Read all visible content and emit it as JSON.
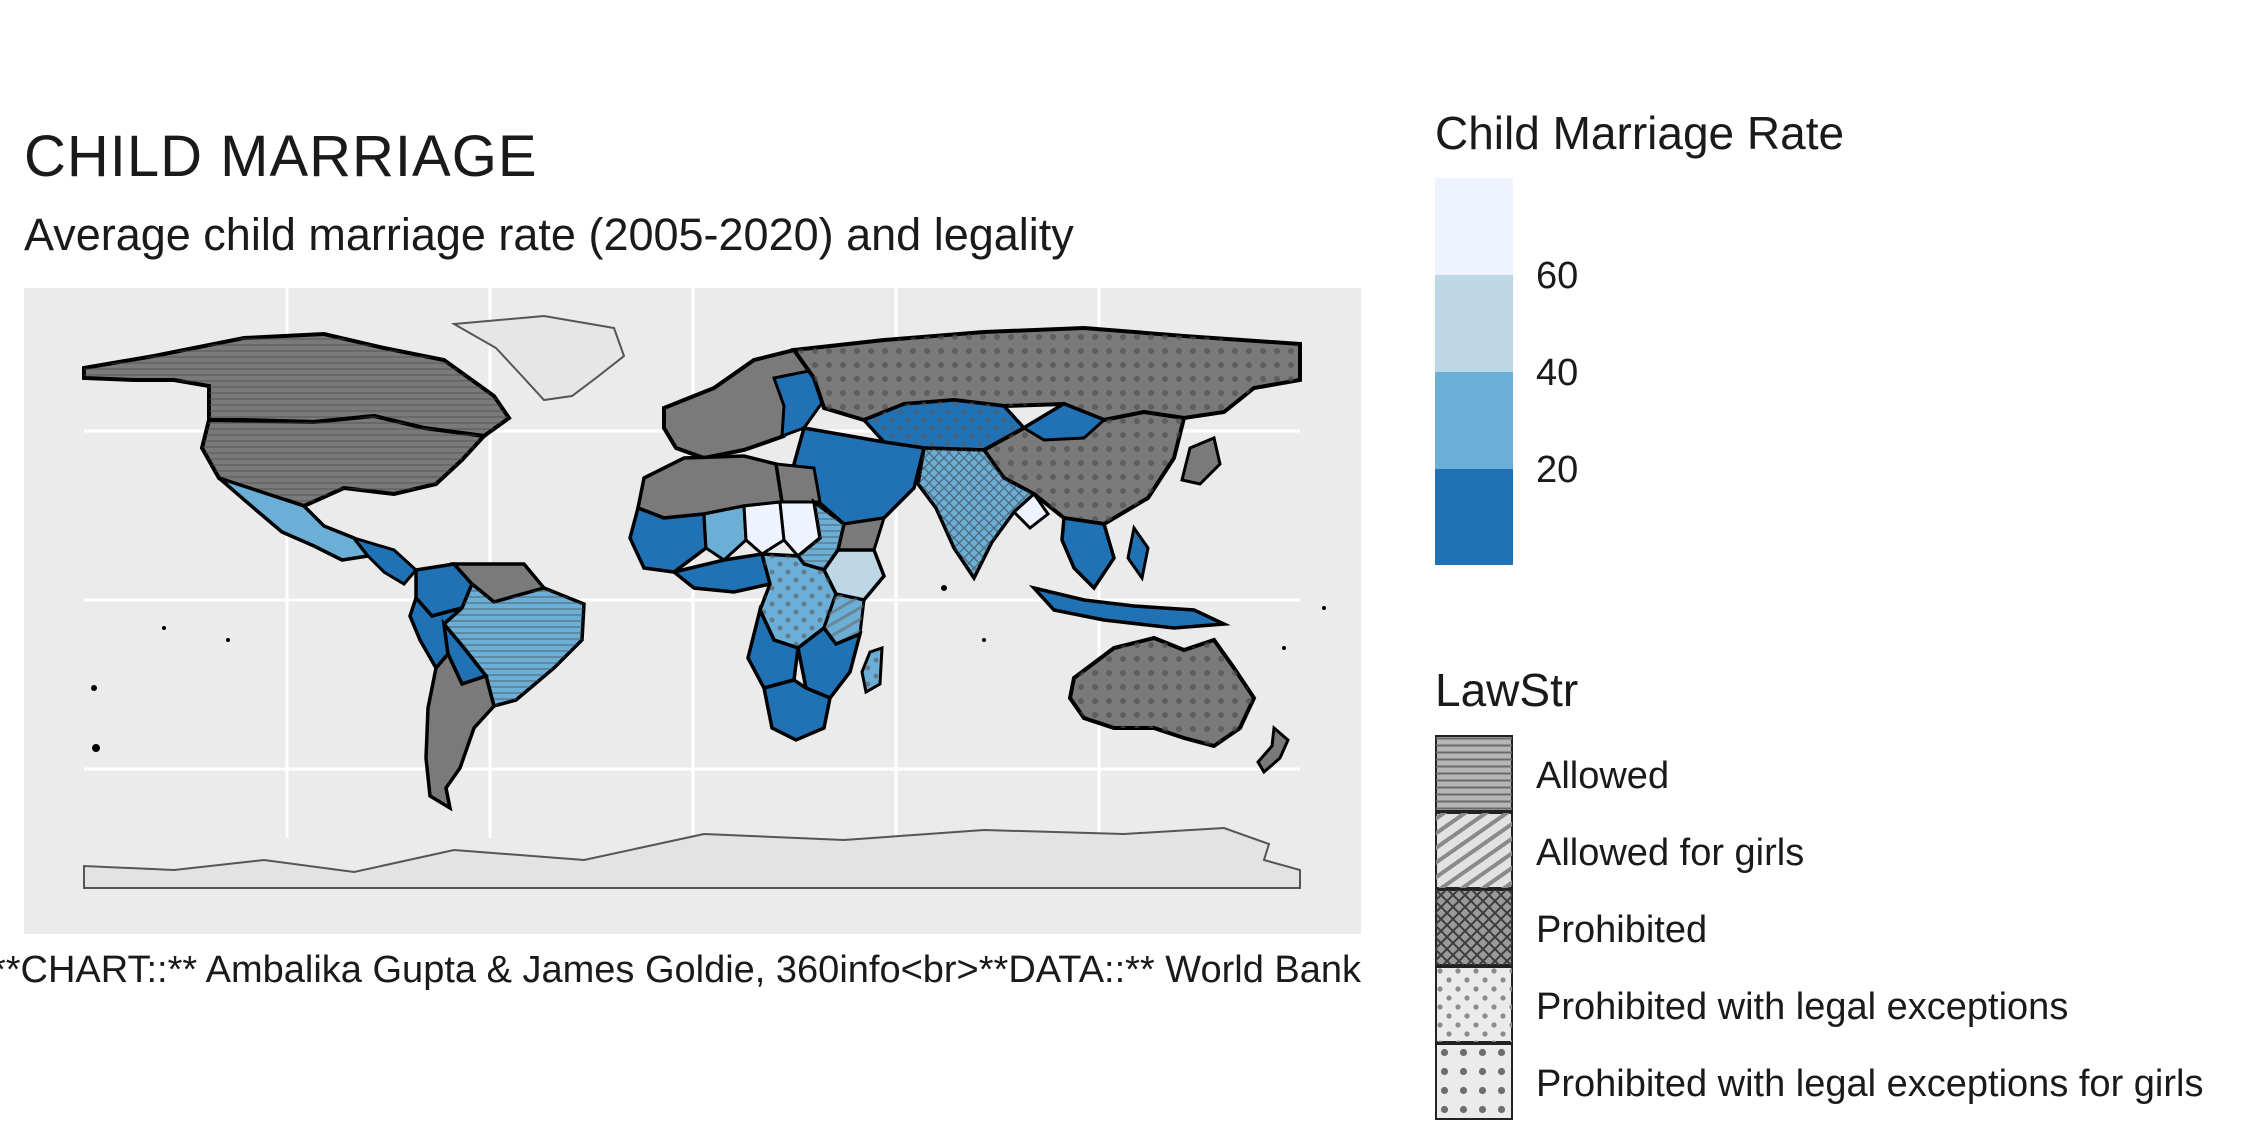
{
  "chart": {
    "title": "CHILD MARRIAGE",
    "subtitle": "Average child marriage rate (2005-2020) and legality",
    "caption": "**CHART::** Ambalika Gupta & James Goldie, 360info<br>**DATA::** World Bank"
  },
  "legend_rate": {
    "title": "Child Marriage Rate",
    "ticks": [
      "20",
      "40",
      "60"
    ],
    "colors": [
      "#2171b5",
      "#6baed6",
      "#bdd7e7",
      "#eff3ff"
    ]
  },
  "legend_law": {
    "title": "LawStr",
    "items": [
      {
        "label": "Allowed",
        "pattern": "horizontal-lines"
      },
      {
        "label": "Allowed for girls",
        "pattern": "diagonal-stripes"
      },
      {
        "label": "Prohibited",
        "pattern": "crosshatch"
      },
      {
        "label": "Prohibited with legal exceptions",
        "pattern": "sparse-dots"
      },
      {
        "label": "Prohibited with legal exceptions for girls",
        "pattern": "dense-dots"
      }
    ]
  },
  "map": {
    "background": "#ebebeb",
    "no_data_fill": "#7a7a7a",
    "countries": [
      {
        "name": "Canada",
        "rate": null,
        "law": "Allowed"
      },
      {
        "name": "United States",
        "rate": null,
        "law": "Allowed"
      },
      {
        "name": "Mexico",
        "rate": 21,
        "law": "Allowed"
      },
      {
        "name": "Brazil",
        "rate": 26,
        "law": "Allowed"
      },
      {
        "name": "Colombia",
        "rate": 23,
        "law": "Prohibited with legal exceptions"
      },
      {
        "name": "Peru",
        "rate": 22,
        "law": "Allowed"
      },
      {
        "name": "Bolivia",
        "rate": 20,
        "law": "Allowed"
      },
      {
        "name": "Argentina",
        "rate": null,
        "law": "Prohibited with legal exceptions"
      },
      {
        "name": "Russia",
        "rate": null,
        "law": "Prohibited with legal exceptions for girls"
      },
      {
        "name": "China",
        "rate": null,
        "law": "Prohibited with legal exceptions for girls"
      },
      {
        "name": "Kazakhstan",
        "rate": 7,
        "law": "Prohibited with legal exceptions"
      },
      {
        "name": "India",
        "rate": 27,
        "law": "Prohibited"
      },
      {
        "name": "Mali",
        "rate": 54,
        "law": "Allowed for girls"
      },
      {
        "name": "Niger",
        "rate": 76,
        "law": "Prohibited with legal exceptions"
      },
      {
        "name": "Chad",
        "rate": 67,
        "law": "Prohibited"
      },
      {
        "name": "Sudan",
        "rate": 34,
        "law": "Allowed"
      },
      {
        "name": "Ethiopia",
        "rate": 40,
        "law": "Prohibited with legal exceptions"
      },
      {
        "name": "DR Congo",
        "rate": 29,
        "law": "Prohibited with legal exceptions"
      },
      {
        "name": "Tanzania",
        "rate": 31,
        "law": "Allowed for girls"
      },
      {
        "name": "Mozambique",
        "rate": 53,
        "law": "Prohibited with legal exceptions"
      },
      {
        "name": "Madagascar",
        "rate": 40,
        "law": "Prohibited with legal exceptions"
      },
      {
        "name": "South Africa",
        "rate": 4,
        "law": "Prohibited with legal exceptions"
      },
      {
        "name": "Australia",
        "rate": null,
        "law": "Prohibited with legal exceptions for girls"
      },
      {
        "name": "Indonesia",
        "rate": 16,
        "law": "Prohibited with legal exceptions"
      },
      {
        "name": "Greenland",
        "rate": null,
        "law": null
      },
      {
        "name": "Antarctica",
        "rate": null,
        "law": null
      }
    ]
  }
}
